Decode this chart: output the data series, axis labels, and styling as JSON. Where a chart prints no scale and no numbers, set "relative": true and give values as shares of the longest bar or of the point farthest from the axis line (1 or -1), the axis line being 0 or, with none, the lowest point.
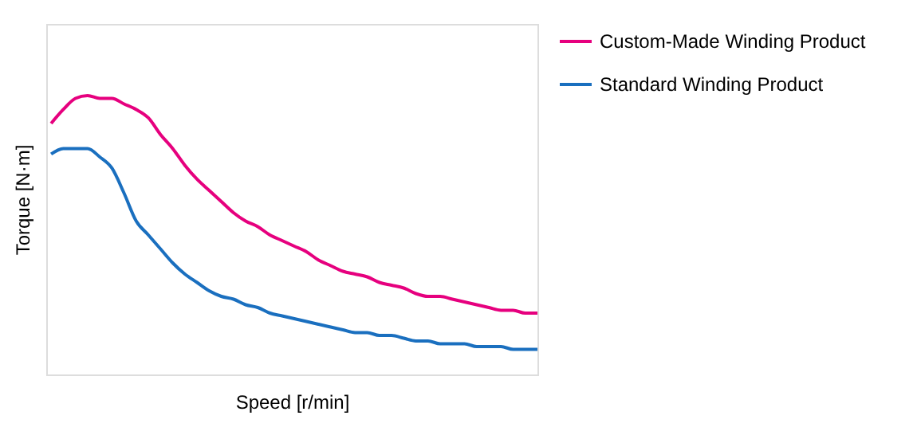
{
  "chart_data": {
    "type": "line",
    "relative": true,
    "xlabel": "Speed [r/min]",
    "ylabel": "Torque [N·m]",
    "tick_labels": false,
    "legend": "right",
    "categories": [
      null,
      null,
      null,
      null,
      null,
      null,
      null,
      null,
      null,
      null,
      null,
      null,
      null,
      null,
      null,
      null,
      null,
      null,
      null,
      null,
      null,
      null,
      null,
      null,
      null,
      null,
      null,
      null,
      null,
      null,
      null,
      null,
      null,
      null,
      null,
      null,
      null,
      null,
      null,
      null,
      null
    ],
    "series": [
      {
        "name": "Custom-Made Winding Product",
        "color": "#e6007e",
        "values": [
          0.9,
          0.95,
          0.99,
          1.0,
          0.99,
          0.99,
          0.97,
          0.95,
          0.92,
          0.86,
          0.81,
          0.75,
          0.7,
          0.66,
          0.62,
          0.58,
          0.55,
          0.53,
          0.5,
          0.48,
          0.46,
          0.44,
          0.41,
          0.39,
          0.37,
          0.36,
          0.35,
          0.33,
          0.32,
          0.31,
          0.29,
          0.28,
          0.28,
          0.27,
          0.26,
          0.25,
          0.24,
          0.23,
          0.23,
          0.22,
          0.22
        ]
      },
      {
        "name": "Standard Winding Product",
        "color": "#1a6fbf",
        "values": [
          0.79,
          0.81,
          0.81,
          0.81,
          0.78,
          0.74,
          0.65,
          0.55,
          0.5,
          0.45,
          0.4,
          0.36,
          0.33,
          0.3,
          0.28,
          0.27,
          0.25,
          0.24,
          0.22,
          0.21,
          0.2,
          0.19,
          0.18,
          0.17,
          0.16,
          0.15,
          0.15,
          0.14,
          0.14,
          0.13,
          0.12,
          0.12,
          0.11,
          0.11,
          0.11,
          0.1,
          0.1,
          0.1,
          0.09,
          0.09,
          0.09
        ]
      }
    ]
  }
}
